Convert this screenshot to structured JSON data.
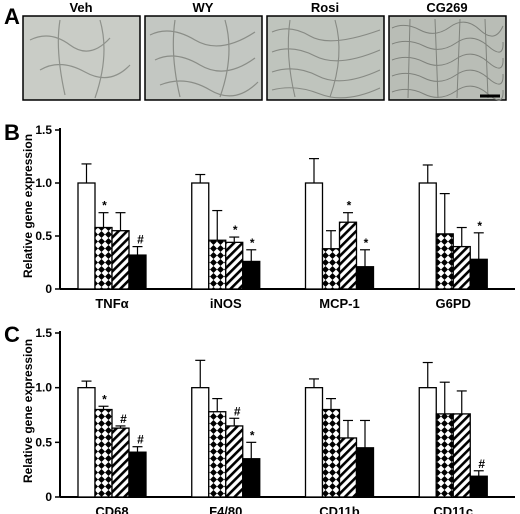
{
  "panel_a": {
    "letter": "A",
    "images": [
      {
        "label": "Veh",
        "tone": "#c9ccc6"
      },
      {
        "label": "WY",
        "tone": "#c3c7c2"
      },
      {
        "label": "Rosi",
        "tone": "#bfc4bd"
      },
      {
        "label": "CG269",
        "tone": "#b9bdb6"
      }
    ]
  },
  "chart_data": [
    {
      "type": "bar",
      "panel": "B",
      "ylabel": "Relative gene expression",
      "ylim": [
        0,
        1.5
      ],
      "yticks": [
        "0",
        "0.5",
        "1.0",
        "1.5"
      ],
      "categories": [
        "TNFα",
        "iNOS",
        "MCP-1",
        "G6PD"
      ],
      "series": [
        {
          "fill": "white",
          "values": [
            1.0,
            1.0,
            1.0,
            1.0
          ],
          "errors": [
            0.18,
            0.08,
            0.23,
            0.17
          ],
          "marks": [
            "",
            "",
            "",
            ""
          ]
        },
        {
          "fill": "diamond",
          "values": [
            0.58,
            0.46,
            0.38,
            0.52
          ],
          "errors": [
            0.14,
            0.28,
            0.17,
            0.38
          ],
          "marks": [
            "*",
            "",
            "",
            ""
          ]
        },
        {
          "fill": "hatch",
          "values": [
            0.55,
            0.44,
            0.63,
            0.4
          ],
          "errors": [
            0.17,
            0.05,
            0.09,
            0.18
          ],
          "marks": [
            "",
            "*",
            "*",
            ""
          ]
        },
        {
          "fill": "black",
          "values": [
            0.32,
            0.26,
            0.21,
            0.28
          ],
          "errors": [
            0.08,
            0.11,
            0.16,
            0.25
          ],
          "marks": [
            "#",
            "*",
            "*",
            "*"
          ]
        }
      ]
    },
    {
      "type": "bar",
      "panel": "C",
      "ylabel": "Relative gene expression",
      "ylim": [
        0,
        1.5
      ],
      "yticks": [
        "0",
        "0.5",
        "1.0",
        "1.5"
      ],
      "categories": [
        "CD68",
        "F4/80",
        "CD11b",
        "CD11c"
      ],
      "series": [
        {
          "fill": "white",
          "values": [
            1.0,
            1.0,
            1.0,
            1.0
          ],
          "errors": [
            0.06,
            0.25,
            0.08,
            0.23
          ],
          "marks": [
            "",
            "",
            "",
            ""
          ]
        },
        {
          "fill": "diamond",
          "values": [
            0.8,
            0.78,
            0.8,
            0.76
          ],
          "errors": [
            0.03,
            0.12,
            0.1,
            0.29
          ],
          "marks": [
            "*",
            "",
            "",
            ""
          ]
        },
        {
          "fill": "hatch",
          "values": [
            0.63,
            0.65,
            0.54,
            0.76
          ],
          "errors": [
            0.02,
            0.07,
            0.16,
            0.21
          ],
          "marks": [
            "#",
            "#",
            "",
            ""
          ]
        },
        {
          "fill": "black",
          "values": [
            0.41,
            0.35,
            0.45,
            0.19
          ],
          "errors": [
            0.05,
            0.15,
            0.25,
            0.05
          ],
          "marks": [
            "#",
            "*",
            "",
            "#"
          ]
        }
      ]
    }
  ]
}
